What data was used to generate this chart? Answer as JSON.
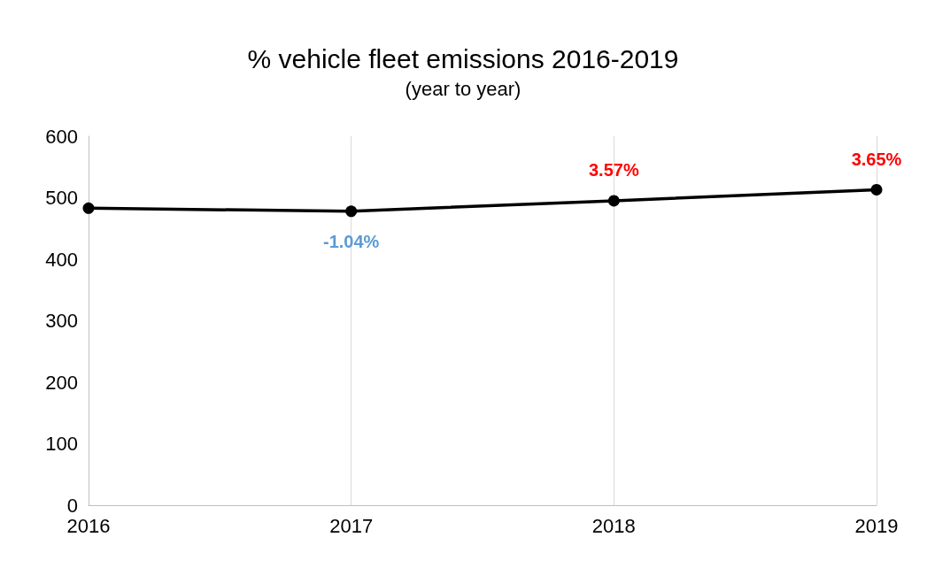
{
  "chart_data": {
    "type": "line",
    "title": "% vehicle fleet emissions 2016-2019",
    "subtitle": "(year to year)",
    "x": [
      2016,
      2017,
      2018,
      2019
    ],
    "series": [
      {
        "color": "#000000",
        "values": [
          483,
          478,
          495,
          513
        ]
      }
    ],
    "annotations": [
      {
        "text": "-1.04%",
        "x": 2017,
        "y": 478
      },
      {
        "text": "3.57%",
        "x": 2018,
        "y": 495
      },
      {
        "text": "3.65%",
        "x": 2019,
        "y": 513
      }
    ],
    "xlim": [
      2016,
      2019
    ],
    "xticks": [
      2016,
      2017,
      2018,
      2019
    ],
    "ylim": [
      0,
      600
    ],
    "yticks": [
      0,
      100,
      200,
      300,
      400,
      500,
      600
    ],
    "grid": "x",
    "marker": "circle",
    "line_style": "solid"
  }
}
